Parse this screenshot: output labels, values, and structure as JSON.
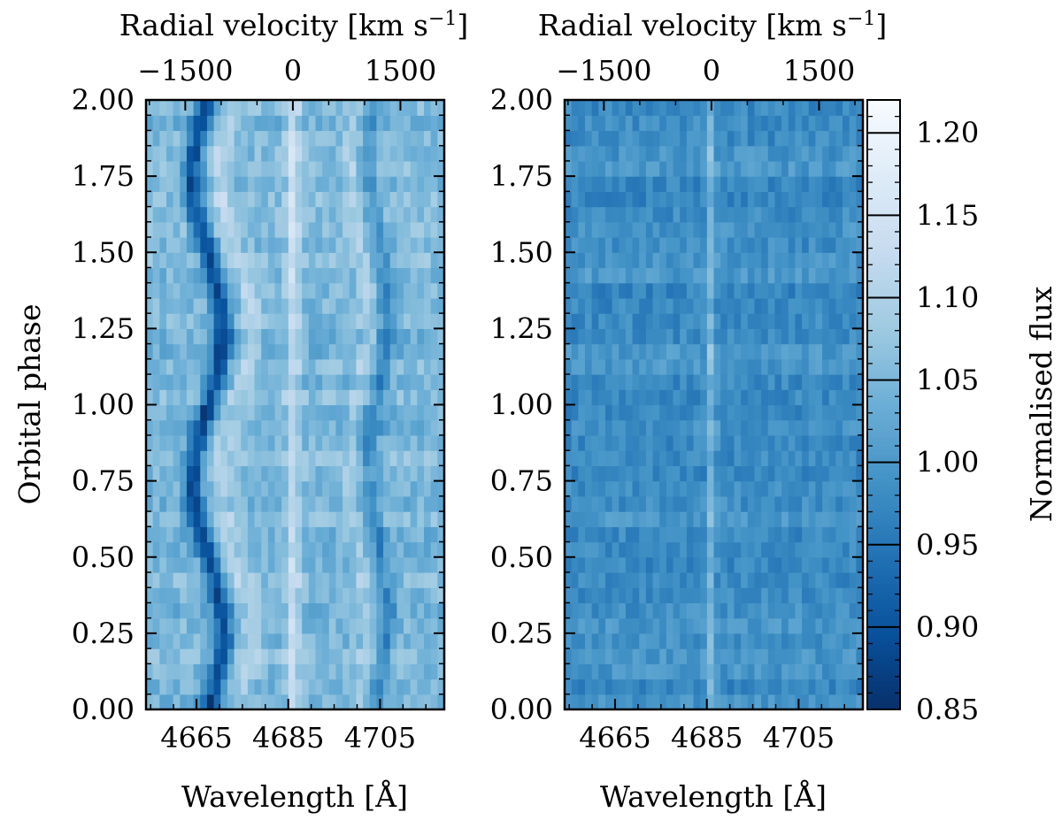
{
  "chart_data": [
    {
      "type": "heatmap",
      "panel": "left",
      "description": "Trailed spectrogram (observed)",
      "xlabel": "Wavelength [Å]",
      "ylabel": "Orbital phase",
      "x_ticks": [
        4665,
        4685,
        4705
      ],
      "x_tick_labels": [
        "4665",
        "4685",
        "4705"
      ],
      "xlim": [
        4654,
        4719
      ],
      "ylim": [
        0.0,
        2.0
      ],
      "y_ticks": [
        0.0,
        0.25,
        0.5,
        0.75,
        1.0,
        1.25,
        1.5,
        1.75,
        2.0
      ],
      "y_tick_labels": [
        "0.00",
        "0.25",
        "0.50",
        "0.75",
        "1.00",
        "1.25",
        "1.50",
        "1.75",
        "2.00"
      ],
      "top_axis": {
        "label_text": "Radial velocity [km s",
        "label_exponent": "−1",
        "label_close": "]",
        "ticks": [
          -1500,
          0,
          1500
        ],
        "tick_labels": [
          "−1500",
          "0",
          "1500"
        ],
        "rest_wavelength": 4686,
        "c_kms": 299792.458
      },
      "features": {
        "absorption_center": 4667.5,
        "absorption_amplitude_A": 3.3,
        "absorption_depth": 0.16,
        "second_absorption_center": 4704.5,
        "second_absorption_depth": 0.07,
        "emission_center": 4686,
        "emission_strength": 0.08
      }
    },
    {
      "type": "heatmap",
      "panel": "right",
      "description": "Residual spectrogram",
      "xlabel": "Wavelength [Å]",
      "x_ticks": [
        4665,
        4685,
        4705
      ],
      "x_tick_labels": [
        "4665",
        "4685",
        "4705"
      ],
      "xlim": [
        4654,
        4719
      ],
      "ylim": [
        0.0,
        2.0
      ],
      "y_ticks": [
        0.0,
        0.25,
        0.5,
        0.75,
        1.0,
        1.25,
        1.5,
        1.75,
        2.0
      ],
      "y_tick_labels": [
        "0.00",
        "0.25",
        "0.50",
        "0.75",
        "1.00",
        "1.25",
        "1.50",
        "1.75",
        "2.00"
      ],
      "top_axis": {
        "label_text": "Radial velocity [km s",
        "label_exponent": "−1",
        "label_close": "]",
        "ticks": [
          -1500,
          0,
          1500
        ],
        "tick_labels": [
          "−1500",
          "0",
          "1500"
        ]
      },
      "features": {
        "base_flux": 0.985,
        "emission_center": 4686,
        "emission_strength": 0.07
      }
    }
  ],
  "colorbar": {
    "label": "Normalised flux",
    "vmin": 0.85,
    "vmax": 1.22,
    "ticks": [
      0.85,
      0.9,
      0.95,
      1.0,
      1.05,
      1.1,
      1.15,
      1.2
    ],
    "tick_labels": [
      "0.85",
      "0.90",
      "0.95",
      "1.00",
      "1.05",
      "1.10",
      "1.15",
      "1.20"
    ],
    "colors": [
      "#08306b",
      "#08519c",
      "#2171b5",
      "#4292c6",
      "#6baed6",
      "#9ecae1",
      "#c6dbef",
      "#deebf7",
      "#f7fbff"
    ]
  }
}
